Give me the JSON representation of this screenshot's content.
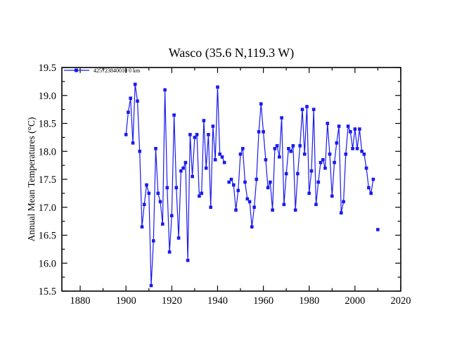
{
  "figure": {
    "background": "#ffffff"
  },
  "legend": {
    "label": "425723840010 0 km"
  },
  "colors": {
    "line": "#1a1aee",
    "axis": "#000000",
    "text": "#000000",
    "background": "#ffffff"
  },
  "chart_data": {
    "type": "line",
    "title": "Wasco (35.6 N,119.3 W)",
    "xlabel": "",
    "ylabel": "Annual Mean Temperatures (°C)",
    "legend_entries": [
      "425723840010 0 km"
    ],
    "legend_position": "top-left-inside",
    "grid": false,
    "marker": "square",
    "line_color": "#1a1aee",
    "x_axis_years_range": [
      1872,
      2020
    ],
    "x_major_ticks": [
      1880,
      1900,
      1920,
      1940,
      1960,
      1980,
      2000,
      2020
    ],
    "x_minor_ticks": [
      1890,
      1910,
      1930,
      1950,
      1970,
      1990,
      2010
    ],
    "ylim": [
      15.5,
      19.5
    ],
    "y_major_ticks": [
      15.5,
      16.0,
      16.5,
      17.0,
      17.5,
      18.0,
      18.5,
      19.0,
      19.5
    ],
    "y_minor_ticks": [
      15.75,
      16.25,
      16.75,
      17.25,
      17.75,
      18.25,
      18.75,
      19.25
    ],
    "series": [
      {
        "name": "425723840010 0 km",
        "start_year": 1900,
        "end_year": 2010,
        "missing_years": [
          1944,
          2009
        ],
        "values": [
          18.3,
          18.7,
          18.95,
          18.15,
          19.2,
          18.9,
          18.0,
          16.65,
          17.05,
          17.4,
          17.25,
          15.6,
          16.4,
          18.05,
          17.25,
          17.1,
          16.7,
          19.1,
          17.35,
          16.2,
          16.85,
          18.65,
          17.35,
          16.45,
          17.65,
          17.7,
          17.8,
          16.05,
          18.3,
          17.55,
          18.25,
          18.3,
          17.2,
          17.25,
          18.55,
          17.7,
          18.3,
          17.0,
          18.45,
          17.85,
          19.15,
          17.95,
          17.9,
          17.8,
          null,
          17.45,
          17.5,
          17.4,
          16.95,
          17.3,
          17.95,
          18.05,
          17.45,
          17.15,
          17.1,
          16.65,
          17.0,
          17.5,
          18.35,
          18.85,
          18.35,
          17.85,
          17.35,
          17.45,
          16.95,
          18.05,
          18.1,
          17.9,
          18.6,
          17.05,
          17.6,
          18.05,
          18.0,
          18.1,
          16.95,
          17.6,
          18.1,
          18.75,
          17.95,
          18.8,
          17.25,
          17.65,
          18.75,
          17.05,
          17.45,
          17.8,
          17.85,
          17.7,
          18.5,
          17.95,
          17.2,
          17.8,
          18.15,
          18.45,
          16.9,
          17.1,
          17.95,
          18.45,
          18.35,
          18.05,
          18.4,
          18.05,
          18.4,
          18.0,
          17.95,
          17.7,
          17.35,
          17.25,
          17.5,
          null,
          16.6
        ]
      }
    ]
  }
}
